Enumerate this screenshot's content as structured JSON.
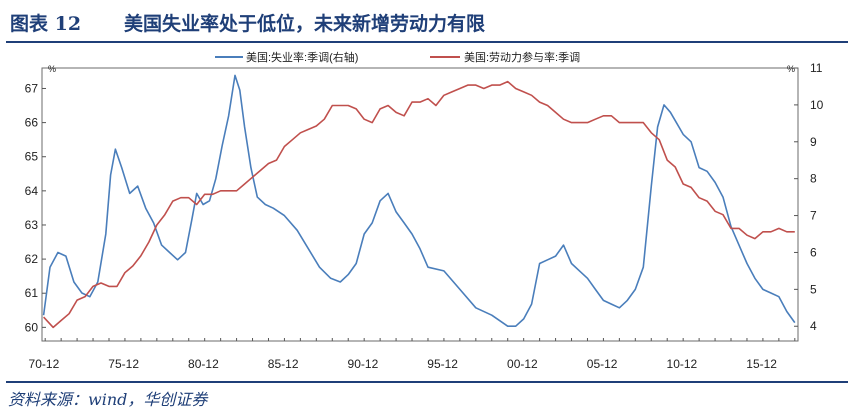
{
  "header": {
    "figure_label": "图表 12",
    "title": "美国失业率处于低位，未来新增劳动力有限"
  },
  "source": "资料来源：wind，华创证券",
  "chart_data": {
    "type": "line",
    "left_axis_unit": "%",
    "right_axis_unit": "%",
    "ylim_left": [
      59.6,
      67.6
    ],
    "ylim_right": [
      3.6,
      11.0
    ],
    "left_ticks": [
      "60",
      "61",
      "62",
      "63",
      "64",
      "65",
      "66",
      "67"
    ],
    "right_ticks": [
      "4",
      "5",
      "6",
      "7",
      "8",
      "9",
      "10",
      "11"
    ],
    "x_range": [
      1970.8,
      2018.2
    ],
    "x_tick_labels": [
      "70-12",
      "75-12",
      "80-12",
      "85-12",
      "90-12",
      "95-12",
      "00-12",
      "05-12",
      "10-12",
      "15-12"
    ],
    "legend_position": "top-center",
    "series": [
      {
        "name": "美国:失业率:季调(右轴)",
        "axis": "right",
        "color": "#4a7ebb",
        "x": [
          1970.9,
          1971.3,
          1971.8,
          1972.3,
          1972.8,
          1973.3,
          1973.8,
          1974.3,
          1974.8,
          1975.1,
          1975.4,
          1975.8,
          1976.3,
          1976.8,
          1977.3,
          1977.8,
          1978.3,
          1978.8,
          1979.3,
          1979.8,
          1980.2,
          1980.5,
          1980.9,
          1981.3,
          1981.7,
          1982.1,
          1982.5,
          1982.9,
          1983.2,
          1983.5,
          1983.9,
          1984.3,
          1984.8,
          1985.3,
          1986.0,
          1986.8,
          1987.5,
          1988.2,
          1988.9,
          1989.5,
          1990.0,
          1990.5,
          1991.0,
          1991.5,
          1992.0,
          1992.5,
          1993.0,
          1993.5,
          1994.0,
          1994.5,
          1995.0,
          1996.0,
          1997.0,
          1998.0,
          1999.0,
          2000.0,
          2000.5,
          2001.0,
          2001.5,
          2002.0,
          2002.5,
          2003.0,
          2003.5,
          2004.0,
          2004.5,
          2005.0,
          2005.5,
          2006.0,
          2006.5,
          2007.0,
          2007.5,
          2008.0,
          2008.5,
          2009.0,
          2009.4,
          2009.8,
          2010.2,
          2010.6,
          2011.0,
          2011.5,
          2012.0,
          2012.5,
          2013.0,
          2013.5,
          2014.0,
          2014.5,
          2015.0,
          2015.5,
          2016.0,
          2016.5,
          2017.0,
          2017.5,
          2018.0
        ],
        "values": [
          4.3,
          5.6,
          6.0,
          5.9,
          5.2,
          4.9,
          4.8,
          5.2,
          6.5,
          8.1,
          8.8,
          8.3,
          7.6,
          7.8,
          7.2,
          6.8,
          6.2,
          6.0,
          5.8,
          6.0,
          6.9,
          7.6,
          7.3,
          7.4,
          8.0,
          8.9,
          9.7,
          10.8,
          10.4,
          9.4,
          8.3,
          7.5,
          7.3,
          7.2,
          7.0,
          6.6,
          6.1,
          5.6,
          5.3,
          5.2,
          5.4,
          5.7,
          6.5,
          6.8,
          7.4,
          7.6,
          7.1,
          6.8,
          6.5,
          6.1,
          5.6,
          5.5,
          5.0,
          4.5,
          4.3,
          4.0,
          4.0,
          4.2,
          4.6,
          5.7,
          5.8,
          5.9,
          6.2,
          5.7,
          5.5,
          5.3,
          5.0,
          4.7,
          4.6,
          4.5,
          4.7,
          5.0,
          5.6,
          7.8,
          9.4,
          10.0,
          9.8,
          9.5,
          9.2,
          9.0,
          8.3,
          8.2,
          7.9,
          7.5,
          6.7,
          6.2,
          5.7,
          5.3,
          5.0,
          4.9,
          4.8,
          4.4,
          4.1
        ]
      },
      {
        "name": "美国:劳动力参与率:季调",
        "axis": "left",
        "color": "#c0504d",
        "x": [
          1970.9,
          1971.5,
          1972.0,
          1972.5,
          1973.0,
          1973.5,
          1974.0,
          1974.5,
          1975.0,
          1975.5,
          1976.0,
          1976.5,
          1977.0,
          1977.5,
          1978.0,
          1978.5,
          1979.0,
          1979.5,
          1980.0,
          1980.5,
          1981.0,
          1981.5,
          1982.0,
          1982.5,
          1983.0,
          1983.5,
          1984.0,
          1984.5,
          1985.0,
          1985.5,
          1986.0,
          1986.5,
          1987.0,
          1987.5,
          1988.0,
          1988.5,
          1989.0,
          1989.5,
          1990.0,
          1990.5,
          1991.0,
          1991.5,
          1992.0,
          1992.5,
          1993.0,
          1993.5,
          1994.0,
          1994.5,
          1995.0,
          1995.5,
          1996.0,
          1996.5,
          1997.0,
          1997.5,
          1998.0,
          1998.5,
          1999.0,
          1999.5,
          2000.0,
          2000.5,
          2001.0,
          2001.5,
          2002.0,
          2002.5,
          2003.0,
          2003.5,
          2004.0,
          2004.5,
          2005.0,
          2005.5,
          2006.0,
          2006.5,
          2007.0,
          2007.5,
          2008.0,
          2008.5,
          2009.0,
          2009.5,
          2010.0,
          2010.5,
          2011.0,
          2011.5,
          2012.0,
          2012.5,
          2013.0,
          2013.5,
          2014.0,
          2014.5,
          2015.0,
          2015.5,
          2016.0,
          2016.5,
          2017.0,
          2017.5,
          2018.0
        ],
        "values": [
          60.3,
          60.0,
          60.2,
          60.4,
          60.8,
          60.9,
          61.2,
          61.3,
          61.2,
          61.2,
          61.6,
          61.8,
          62.1,
          62.5,
          63.0,
          63.3,
          63.7,
          63.8,
          63.8,
          63.6,
          63.9,
          63.9,
          64.0,
          64.0,
          64.0,
          64.2,
          64.4,
          64.6,
          64.8,
          64.9,
          65.3,
          65.5,
          65.7,
          65.8,
          65.9,
          66.1,
          66.5,
          66.5,
          66.5,
          66.4,
          66.1,
          66.0,
          66.4,
          66.5,
          66.3,
          66.2,
          66.6,
          66.6,
          66.7,
          66.5,
          66.8,
          66.9,
          67.0,
          67.1,
          67.1,
          67.0,
          67.1,
          67.1,
          67.2,
          67.0,
          66.9,
          66.8,
          66.6,
          66.5,
          66.3,
          66.1,
          66.0,
          66.0,
          66.0,
          66.1,
          66.2,
          66.2,
          66.0,
          66.0,
          66.0,
          66.0,
          65.7,
          65.5,
          64.9,
          64.7,
          64.2,
          64.1,
          63.8,
          63.7,
          63.4,
          63.3,
          62.9,
          62.9,
          62.7,
          62.6,
          62.8,
          62.8,
          62.9,
          62.8,
          62.8
        ]
      }
    ]
  }
}
